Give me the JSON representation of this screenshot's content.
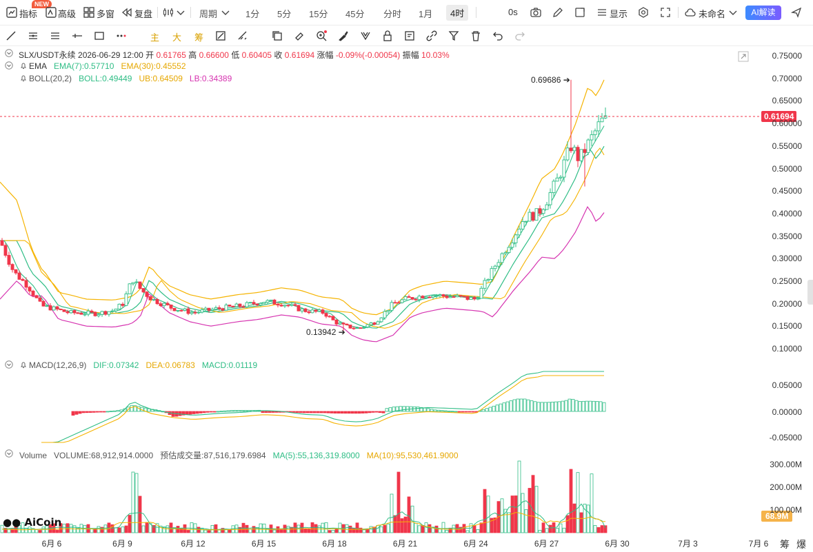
{
  "toolbar": {
    "indicator_label": "指标",
    "new_badge": "NEW",
    "advanced_label": "高级",
    "multiwin_label": "多窗",
    "replay_label": "复盘",
    "period_label": "周期",
    "periods": [
      "1分",
      "5分",
      "15分",
      "45分",
      "分时",
      "1月",
      "4时"
    ],
    "active_period": "4时",
    "countdown": "0s",
    "display_label": "显示",
    "layout_name": "未命名",
    "ai_label": "AI解读"
  },
  "drawing_tools": {
    "main_label": "主",
    "big_label": "大",
    "chip_label": "筹"
  },
  "legend": {
    "symbol": "SLX/USDT永续",
    "datetime": "2026-06-29 12:00",
    "open_label": "开",
    "open": "0.61765",
    "high_label": "高",
    "high": "0.66600",
    "low_label": "低",
    "low": "0.60405",
    "close_label": "收",
    "close": "0.61694",
    "change_label": "涨幅",
    "change": "-0.09%(-0.00054)",
    "amp_label": "振幅",
    "amp": "10.03%",
    "ema_name": "EMA",
    "ema7": "EMA(7):0.57710",
    "ema30": "EMA(30):0.45552",
    "boll_name": "BOLL(20,2)",
    "boll": "BOLL:0.49449",
    "ub": "UB:0.64509",
    "lb": "LB:0.34389",
    "macd_name": "MACD(12,26,9)",
    "dif": "DIF:0.07342",
    "dea": "DEA:0.06783",
    "macd": "MACD:0.01119",
    "vol_name": "Volume",
    "volume": "VOLUME:68,912,914.0000",
    "est_volume": "预估成交量:87,516,179.6984",
    "ma5": "MA(5):55,136,319.8000",
    "ma10": "MA(10):95,530,461.9000"
  },
  "annotations": {
    "high_marker": "0.69686",
    "low_marker": "0.13942",
    "current_price": "0.61694",
    "current_volume": "68.9M"
  },
  "price_axis": [
    "0.75000",
    "0.70000",
    "0.65000",
    "0.60000",
    "0.55000",
    "0.50000",
    "0.45000",
    "0.40000",
    "0.35000",
    "0.30000",
    "0.25000",
    "0.20000",
    "0.15000",
    "0.10000"
  ],
  "macd_axis": [
    "0.05000",
    "0.00000",
    "-0.05000"
  ],
  "volume_axis": [
    "300.00M",
    "200.00M",
    "100.00M"
  ],
  "x_axis": [
    "6月 6",
    "6月 9",
    "6月 12",
    "6月 15",
    "6月 18",
    "6月 21",
    "6月 24",
    "6月 27",
    "6月 30",
    "7月 3",
    "7月 6"
  ],
  "bottom_right": [
    "筹",
    "爆"
  ],
  "logo_text": "AiCoin",
  "colors": {
    "up": "#2ebd85",
    "down": "#f0364a",
    "ema7": "#2ebd85",
    "ema30": "#f5b300",
    "boll_mid": "#2ebd85",
    "boll_ub": "#f5b300",
    "boll_lb": "#d633b0",
    "accent": "#3d8bff"
  },
  "chart_data": {
    "type": "candlestick",
    "title": "SLX/USDT永续 4时",
    "interval": "4h",
    "price_range": [
      0.1,
      0.75
    ],
    "x_range": [
      "6月 6",
      "7月 6"
    ],
    "keypoints_close": [
      {
        "date": "6月 6",
        "price": 0.19
      },
      {
        "date": "6月 9",
        "price": 0.25
      },
      {
        "date": "6月 12",
        "price": 0.18
      },
      {
        "date": "6月 15",
        "price": 0.205
      },
      {
        "date": "6月 18",
        "price": 0.15
      },
      {
        "date": "6月 21",
        "price": 0.21
      },
      {
        "date": "6月 24",
        "price": 0.24
      },
      {
        "date": "6月 27",
        "price": 0.45
      },
      {
        "date": "6月 29",
        "price": 0.61694
      }
    ],
    "high": 0.69686,
    "low": 0.13942
  }
}
